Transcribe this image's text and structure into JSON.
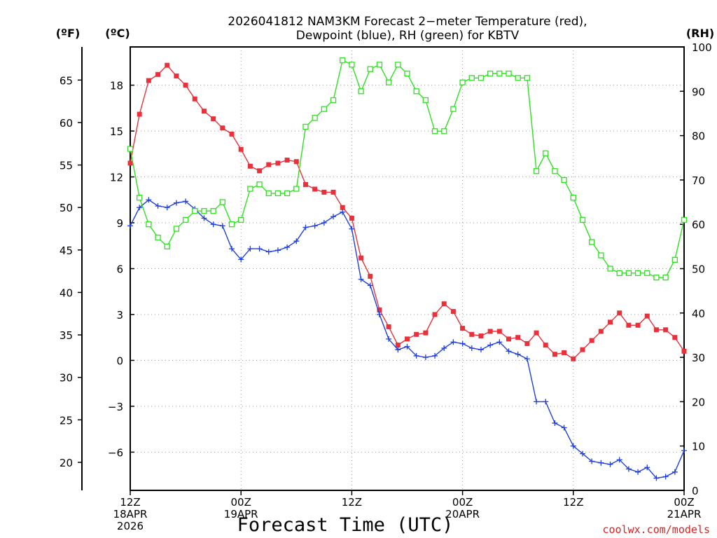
{
  "chart_data": {
    "type": "line",
    "title_line1": "2026041812 NAM3KM Forecast 2−meter Temperature (red),",
    "title_line2": "Dewpoint (blue), RH (green) for KBTV",
    "left_unit_f": "(ºF)",
    "left_unit_c": "(ºC)",
    "right_unit": "(RH)",
    "xlabel": "Forecast Time (UTC)",
    "credit": "coolwx.com/models",
    "x_range_hours": [
      0,
      60
    ],
    "ylim_c": [
      -8.5,
      20.5
    ],
    "rh_lim": [
      0,
      100
    ],
    "f_ticks": [
      "20",
      "25",
      "30",
      "35",
      "40",
      "45",
      "50",
      "55",
      "60",
      "65"
    ],
    "c_ticks": [
      "−6",
      "−3",
      "0",
      "3",
      "6",
      "9",
      "12",
      "15",
      "18"
    ],
    "rh_ticks": [
      "0",
      "10",
      "20",
      "30",
      "40",
      "50",
      "60",
      "70",
      "80",
      "90",
      "100"
    ],
    "x_ticks": [
      {
        "hour": 0,
        "line1": "12Z",
        "line2": "18APR",
        "line3": "2026"
      },
      {
        "hour": 12,
        "line1": "00Z",
        "line2": "19APR",
        "line3": ""
      },
      {
        "hour": 24,
        "line1": "12Z",
        "line2": "",
        "line3": ""
      },
      {
        "hour": 36,
        "line1": "00Z",
        "line2": "20APR",
        "line3": ""
      },
      {
        "hour": 48,
        "line1": "12Z",
        "line2": "",
        "line3": ""
      },
      {
        "hour": 60,
        "line1": "00Z",
        "line2": "21APR",
        "line3": ""
      }
    ],
    "series": [
      {
        "name": "Temperature",
        "unit": "C",
        "color": "#e8313a",
        "marker": "filled-square",
        "hours": [
          0,
          1,
          2,
          3,
          4,
          5,
          6,
          7,
          8,
          9,
          10,
          11,
          12,
          13,
          14,
          15,
          16,
          17,
          18,
          19,
          20,
          21,
          22,
          23,
          24,
          25,
          26,
          27,
          28,
          29,
          30,
          31,
          32,
          33,
          34,
          35,
          36,
          37,
          38,
          39,
          40,
          41,
          42,
          43,
          44,
          45,
          46,
          47,
          48,
          49,
          50,
          51,
          52,
          53,
          54,
          55,
          56,
          57,
          58,
          59,
          60
        ],
        "values": [
          12.9,
          16.1,
          18.3,
          18.7,
          19.3,
          18.6,
          18.0,
          17.1,
          16.3,
          15.8,
          15.2,
          14.8,
          13.8,
          12.7,
          12.4,
          12.8,
          12.9,
          13.1,
          13.0,
          11.5,
          11.2,
          11.0,
          11.0,
          10.0,
          9.3,
          6.7,
          5.5,
          3.3,
          2.2,
          1.0,
          1.4,
          1.7,
          1.8,
          3.0,
          3.7,
          3.2,
          2.1,
          1.7,
          1.6,
          1.9,
          1.9,
          1.4,
          1.5,
          1.1,
          1.8,
          1.0,
          0.4,
          0.5,
          0.1,
          0.7,
          1.3,
          1.9,
          2.5,
          3.1,
          2.3,
          2.3,
          2.9,
          2.0,
          2.0,
          1.5,
          0.6
        ]
      },
      {
        "name": "Dewpoint",
        "unit": "C",
        "color": "#1f3fe0",
        "marker": "plus",
        "hours": [
          0,
          1,
          2,
          3,
          4,
          5,
          6,
          7,
          8,
          9,
          10,
          11,
          12,
          13,
          14,
          15,
          16,
          17,
          18,
          19,
          20,
          21,
          22,
          23,
          24,
          25,
          26,
          27,
          28,
          29,
          30,
          31,
          32,
          33,
          34,
          35,
          36,
          37,
          38,
          39,
          40,
          41,
          42,
          43,
          44,
          45,
          46,
          47,
          48,
          49,
          50,
          51,
          52,
          53,
          54,
          55,
          56,
          57,
          58,
          59,
          60
        ],
        "values": [
          8.8,
          10.0,
          10.5,
          10.1,
          10.0,
          10.3,
          10.4,
          9.9,
          9.3,
          8.9,
          8.8,
          7.3,
          6.6,
          7.3,
          7.3,
          7.1,
          7.2,
          7.4,
          7.8,
          8.7,
          8.8,
          9.0,
          9.4,
          9.7,
          8.6,
          5.3,
          4.9,
          3.0,
          1.4,
          0.7,
          0.9,
          0.3,
          0.2,
          0.3,
          0.8,
          1.2,
          1.1,
          0.8,
          0.7,
          1.0,
          1.2,
          0.6,
          0.4,
          0.1,
          -2.7,
          -2.7,
          -4.1,
          -4.4,
          -5.6,
          -6.1,
          -6.6,
          -6.7,
          -6.8,
          -6.5,
          -7.1,
          -7.3,
          -7.0,
          -7.7,
          -7.6,
          -7.3,
          -5.9
        ]
      },
      {
        "name": "RH",
        "unit": "%",
        "color": "#2de21e",
        "marker": "open-square",
        "axis": "right",
        "hours": [
          0,
          1,
          2,
          3,
          4,
          5,
          6,
          7,
          8,
          9,
          10,
          11,
          12,
          13,
          14,
          15,
          16,
          17,
          18,
          19,
          20,
          21,
          22,
          23,
          24,
          25,
          26,
          27,
          28,
          29,
          30,
          31,
          32,
          33,
          34,
          35,
          36,
          37,
          38,
          39,
          40,
          41,
          42,
          43,
          44,
          45,
          46,
          47,
          48,
          49,
          50,
          51,
          52,
          53,
          54,
          55,
          56,
          57,
          58,
          59,
          60
        ],
        "values": [
          77,
          66,
          60,
          57,
          55,
          59,
          61,
          63,
          63,
          63,
          65,
          60,
          61,
          68,
          69,
          67,
          67,
          67,
          68,
          82,
          84,
          86,
          88,
          97,
          96,
          90,
          95,
          96,
          92,
          96,
          94,
          90,
          88,
          81,
          81,
          86,
          92,
          93,
          93,
          94,
          94,
          94,
          93,
          93,
          72,
          76,
          72,
          70,
          66,
          61,
          56,
          53,
          50,
          49,
          49,
          49,
          49,
          48,
          48,
          52,
          61
        ]
      }
    ]
  }
}
